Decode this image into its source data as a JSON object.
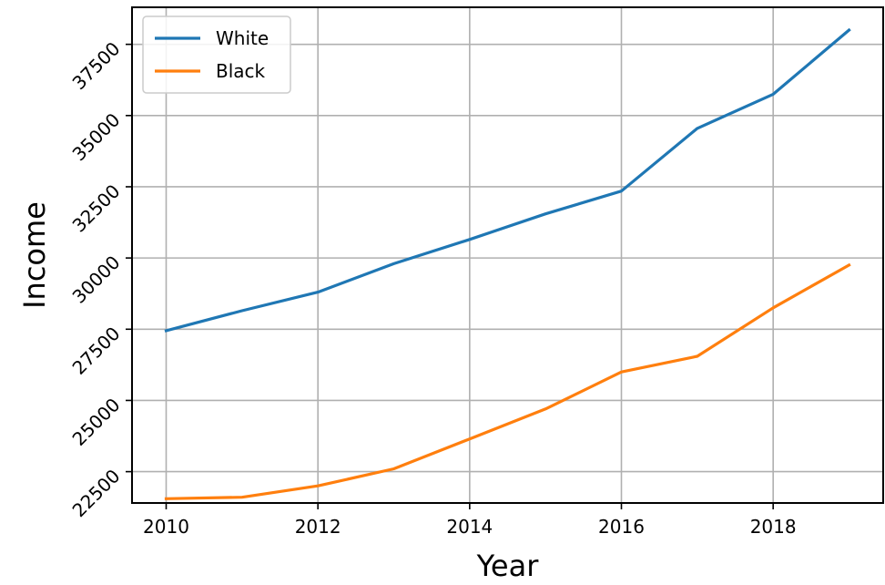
{
  "chart_data": {
    "type": "line",
    "title": "",
    "xlabel": "Year",
    "ylabel": "Income",
    "x": [
      2010,
      2011,
      2012,
      2013,
      2014,
      2015,
      2016,
      2017,
      2018,
      2019
    ],
    "series": [
      {
        "name": "White",
        "color": "#1f77b4",
        "values": [
          27450,
          28150,
          28800,
          29800,
          30650,
          31550,
          32350,
          34550,
          35750,
          38000
        ]
      },
      {
        "name": "Black",
        "color": "#ff7f0e",
        "values": [
          21550,
          21600,
          22000,
          22600,
          23650,
          24700,
          26000,
          26550,
          28250,
          29750
        ]
      }
    ],
    "xlim": [
      2009.55,
      2019.45
    ],
    "ylim": [
      21400,
      38800
    ],
    "xticks": [
      2010,
      2012,
      2014,
      2016,
      2018
    ],
    "xtick_labels": [
      "2010",
      "2012",
      "2014",
      "2016",
      "2018"
    ],
    "yticks": [
      22500,
      25000,
      27500,
      30000,
      32500,
      35000,
      37500
    ],
    "ytick_labels": [
      "22500",
      "25000",
      "27500",
      "30000",
      "32500",
      "35000",
      "37500"
    ],
    "grid": true,
    "legend_position": "top-left"
  }
}
